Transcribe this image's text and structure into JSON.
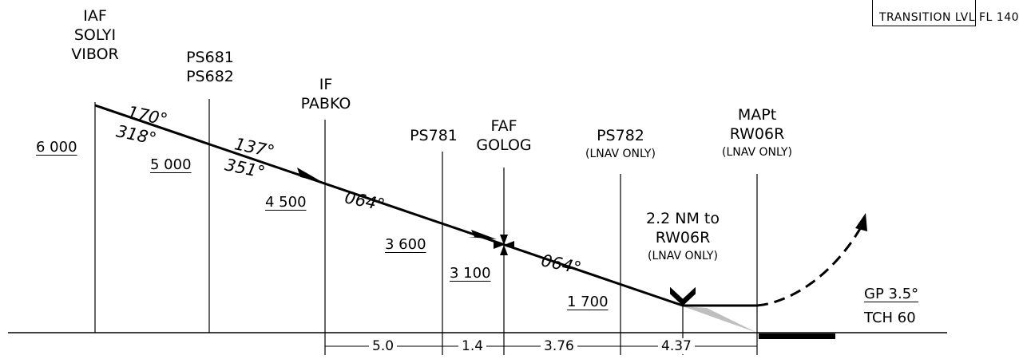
{
  "header": {
    "transition_level": "TRANSITION LVL FL 140"
  },
  "fixes": [
    {
      "l1": "IAF",
      "l2": "SOLYI",
      "l3": "VIBOR",
      "altitude": "6 000"
    },
    {
      "l1": "PS681",
      "l2": "PS682",
      "altitude": "5 000"
    },
    {
      "l1": "IF",
      "l2": "PABKO",
      "altitude": "4 500"
    },
    {
      "l1": "PS781",
      "altitude": "3 600"
    },
    {
      "l1": "FAF",
      "l2": "GOLOG",
      "altitude": "3 100"
    },
    {
      "l1": "PS782",
      "note": "(LNAV ONLY)",
      "altitude": "1 700"
    },
    {
      "l1": "MAPt",
      "l2": "RW06R",
      "note": "(LNAV ONLY)"
    }
  ],
  "courses": [
    "170°",
    "318°",
    "137°",
    "351°",
    "064°",
    "064°"
  ],
  "distances": [
    "5.0",
    "1.4",
    "3.76",
    "4.37"
  ],
  "vdp": {
    "l1": "2.2 NM to",
    "l2": "RW06R",
    "note": "(LNAV ONLY)"
  },
  "glidepath": {
    "gp": "GP 3.5°",
    "tch": "TCH 60"
  }
}
